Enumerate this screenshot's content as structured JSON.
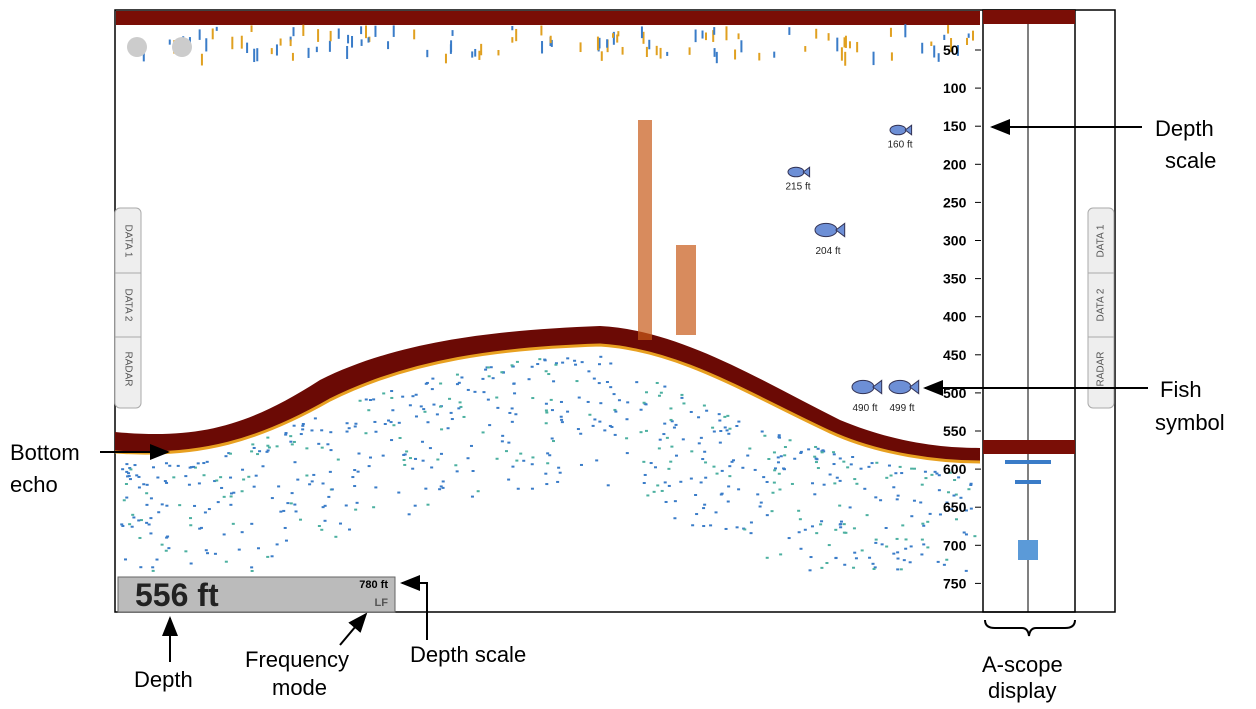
{
  "screen": {
    "depth_scale": [
      "50",
      "100",
      "150",
      "200",
      "250",
      "300",
      "350",
      "400",
      "450",
      "500",
      "550",
      "600",
      "650",
      "700",
      "750"
    ],
    "fish": [
      {
        "label": "160 ft"
      },
      {
        "label": "215 ft"
      },
      {
        "label": "204 ft"
      },
      {
        "label": "490 ft"
      },
      {
        "label": "499 ft"
      }
    ],
    "left_tabs": [
      "DATA 1",
      "DATA 2",
      "RADAR"
    ],
    "right_tabs": [
      "DATA 1",
      "DATA 2",
      "RADAR"
    ],
    "readout": {
      "depth": "556 ft",
      "range": "780 ft",
      "mode": "LF"
    }
  },
  "callouts": {
    "depth_scale_right": [
      "Depth",
      "scale"
    ],
    "fish_symbol": [
      "Fish",
      "symbol"
    ],
    "bottom_echo": [
      "Bottom",
      "echo"
    ],
    "depth": "Depth",
    "frequency_mode": [
      "Frequency",
      "mode"
    ],
    "depth_scale_bottom": "Depth scale",
    "a_scope": [
      "A-scope",
      "display"
    ]
  }
}
